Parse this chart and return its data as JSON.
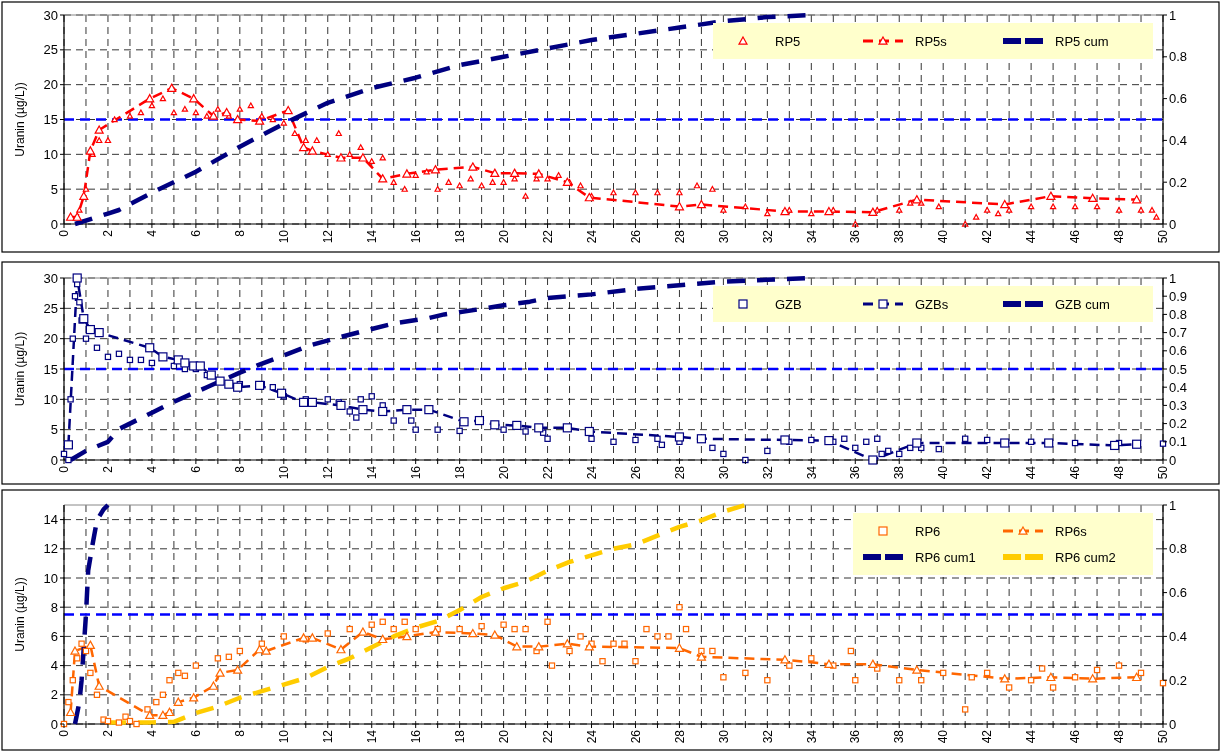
{
  "chart_data": [
    {
      "type": "scatter",
      "ylabel": "Uranin (µg/L))",
      "xlim": [
        0,
        50
      ],
      "ylim": [
        0,
        30
      ],
      "y2lim": [
        0,
        1
      ],
      "xticks": [
        0,
        {
          "value": 1,
          "label": null
        },
        2,
        {
          "value": 3,
          "label": null
        },
        4,
        {
          "value": 5,
          "label": null
        },
        6,
        {
          "value": 7,
          "label": null
        },
        8,
        {
          "value": 9,
          "label": null
        },
        10,
        {
          "value": 11,
          "label": null
        },
        12,
        {
          "value": 13,
          "label": null
        },
        14,
        {
          "value": 15,
          "label": null
        },
        16,
        {
          "value": 17,
          "label": null
        },
        18,
        {
          "value": 19,
          "label": null
        },
        20,
        {
          "value": 21,
          "label": null
        },
        22,
        {
          "value": 23,
          "label": null
        },
        24,
        {
          "value": 25,
          "label": null
        },
        26,
        {
          "value": 27,
          "label": null
        },
        28,
        {
          "value": 29,
          "label": null
        },
        30,
        {
          "value": 31,
          "label": null
        },
        32,
        {
          "value": 33,
          "label": null
        },
        34,
        {
          "value": 35,
          "label": null
        },
        36,
        {
          "value": 37,
          "label": null
        },
        38,
        {
          "value": 39,
          "label": null
        },
        40,
        {
          "value": 41,
          "label": null
        },
        42,
        {
          "value": 43,
          "label": null
        },
        44,
        {
          "value": 45,
          "label": null
        },
        46,
        {
          "value": 47,
          "label": null
        },
        48,
        {
          "value": 49,
          "label": null
        },
        50
      ],
      "yticks": [
        0,
        5,
        10,
        15,
        20,
        25,
        30
      ],
      "y2ticks": [
        0,
        0.2,
        0.4,
        0.6,
        0.8,
        1
      ],
      "grid": true,
      "legend": "top right",
      "ref_lines": [
        {
          "axis": "y",
          "value": 15,
          "color": "#0000ff",
          "line_style": "dashed"
        }
      ],
      "series": [
        {
          "name": "RP5",
          "type": "scatter",
          "color": "#ff0000",
          "marker": "triangle",
          "x": [
            0.7,
            1,
            1.3,
            1.6,
            2,
            2.3,
            3,
            3.5,
            4,
            4.5,
            5,
            5.5,
            6,
            6.5,
            7,
            7.5,
            8,
            8.5,
            9,
            9.5,
            10,
            10.5,
            11,
            11.5,
            12,
            12.5,
            13,
            13.5,
            14,
            14.5,
            15,
            15.5,
            16,
            16.5,
            17,
            17.5,
            18,
            18.5,
            19,
            19.5,
            20,
            20.5,
            21,
            21.5,
            22,
            22.5,
            23,
            23.5,
            24,
            25,
            26,
            27,
            28,
            28.8,
            29.5,
            30,
            31,
            32,
            33,
            34,
            35,
            36,
            37,
            38,
            38.5,
            39,
            39.8,
            41,
            41.5,
            42,
            42.5,
            43,
            44,
            45,
            46,
            47,
            48,
            49,
            49.5,
            49.7
          ],
          "values": [
            2,
            5,
            10,
            12,
            12,
            15,
            15.5,
            16,
            17,
            18,
            16,
            16.5,
            16,
            15.5,
            16.5,
            15.5,
            16.5,
            17,
            15.5,
            15,
            14.5,
            13,
            12,
            12,
            10,
            13,
            10,
            11,
            9,
            9.5,
            6,
            5,
            7,
            7.5,
            5,
            6,
            5.5,
            6.5,
            5.5,
            6,
            6,
            6.5,
            4,
            6.5,
            6.5,
            7,
            6,
            5.5,
            4,
            4.5,
            4.5,
            4.5,
            4.5,
            5.5,
            5,
            2,
            2.5,
            1.5,
            2,
            1.5,
            2,
            0,
            2,
            2,
            3,
            3,
            2.5,
            0,
            1,
            2,
            1.5,
            2,
            2.5,
            2.5,
            2.5,
            2.5,
            2,
            2,
            2,
            1
          ]
        },
        {
          "name": "RP5s",
          "type": "line",
          "color": "#ff0000",
          "marker": "triangle",
          "line_style": "dashed",
          "x": [
            0.3,
            0.6,
            0.9,
            1.2,
            1.6,
            3.9,
            4.9,
            5.9,
            6.8,
            7.4,
            7.9,
            8.9,
            10.2,
            10.9,
            11.3,
            12.6,
            13.6,
            14.5,
            15.6,
            16.9,
            18.6,
            19.6,
            20.5,
            21.6,
            22.9,
            23.9,
            28,
            29,
            32.8,
            34.8,
            36.8,
            38.8,
            42.8,
            44.9,
            46.8,
            48.8
          ],
          "values": [
            1,
            1,
            4,
            10.5,
            13.5,
            18,
            19.5,
            18,
            15.5,
            16,
            15,
            14.8,
            16.3,
            11,
            10.5,
            9.5,
            9.5,
            6.5,
            7.2,
            7.8,
            8.2,
            7.3,
            7.3,
            7.2,
            6,
            3.8,
            2.5,
            2.8,
            1.8,
            1.8,
            1.7,
            3.5,
            2.8,
            4,
            3.7,
            3.5
          ]
        },
        {
          "name": "RP5 cum",
          "type": "line",
          "axis": "y2",
          "color": "#000080",
          "line_style": "dashed",
          "x": [
            0.5,
            2,
            2.5,
            4,
            6,
            8,
            10,
            12,
            14,
            16,
            18,
            20,
            22,
            24,
            26,
            28,
            30,
            32,
            34
          ],
          "values": [
            0,
            0.05,
            0.067,
            0.15,
            0.25,
            0.37,
            0.48,
            0.58,
            0.65,
            0.7,
            0.76,
            0.8,
            0.84,
            0.88,
            0.91,
            0.94,
            0.97,
            0.99,
            1
          ]
        }
      ]
    },
    {
      "type": "scatter",
      "ylabel": "Uranin (µg/L))",
      "xlim": [
        0,
        50
      ],
      "ylim": [
        0,
        30
      ],
      "y2lim": [
        0,
        1
      ],
      "xticks": [
        0,
        {
          "value": 1,
          "label": null
        },
        2,
        {
          "value": 3,
          "label": null
        },
        4,
        {
          "value": 5,
          "label": null
        },
        6,
        {
          "value": 7,
          "label": null
        },
        8,
        {
          "value": 9,
          "label": null
        },
        10,
        {
          "value": 11,
          "label": null
        },
        12,
        {
          "value": 13,
          "label": null
        },
        14,
        {
          "value": 15,
          "label": null
        },
        16,
        {
          "value": 17,
          "label": null
        },
        18,
        {
          "value": 19,
          "label": null
        },
        20,
        {
          "value": 21,
          "label": null
        },
        22,
        {
          "value": 23,
          "label": null
        },
        24,
        {
          "value": 25,
          "label": null
        },
        26,
        {
          "value": 27,
          "label": null
        },
        28,
        {
          "value": 29,
          "label": null
        },
        30,
        {
          "value": 31,
          "label": null
        },
        32,
        {
          "value": 33,
          "label": null
        },
        34,
        {
          "value": 35,
          "label": null
        },
        36,
        {
          "value": 37,
          "label": null
        },
        38,
        {
          "value": 39,
          "label": null
        },
        40,
        {
          "value": 41,
          "label": null
        },
        42,
        {
          "value": 43,
          "label": null
        },
        44,
        {
          "value": 45,
          "label": null
        },
        46,
        {
          "value": 47,
          "label": null
        },
        48,
        {
          "value": 49,
          "label": null
        },
        50
      ],
      "yticks": [
        0,
        5,
        10,
        15,
        20,
        25,
        30
      ],
      "y2ticks": [
        0,
        0.1,
        0.2,
        0.3,
        0.4,
        0.5,
        0.6,
        0.7,
        0.8,
        0.9,
        1
      ],
      "grid": true,
      "legend": "top right",
      "ref_lines": [
        {
          "axis": "y",
          "value": 15,
          "color": "#0000ff",
          "line_style": "dashed"
        }
      ],
      "series": [
        {
          "name": "GZB",
          "type": "scatter",
          "color": "#000080",
          "marker": "square",
          "x": [
            0,
            0.2,
            0.3,
            0.4,
            0.5,
            0.6,
            0.7,
            0.8,
            1,
            1.5,
            2,
            2.5,
            3,
            3.5,
            4,
            5,
            5.5,
            6,
            6.5,
            8,
            9,
            9.5,
            10,
            11,
            12,
            12.5,
            13,
            13.3,
            13.5,
            14,
            14.5,
            15,
            15.8,
            16,
            17,
            18,
            20,
            21,
            21.8,
            22,
            24,
            25,
            26,
            27,
            27.2,
            28,
            29.5,
            30,
            31,
            32,
            33,
            34,
            35,
            35.5,
            36,
            36.5,
            37,
            37.2,
            37.5,
            38,
            38.5,
            39,
            39.8,
            41,
            42,
            44,
            46,
            48,
            50
          ],
          "values": [
            1,
            0,
            10,
            20,
            27,
            29,
            26,
            23,
            20,
            18.5,
            17,
            17.5,
            16.5,
            16.5,
            16,
            15.5,
            15,
            15,
            14,
            12.5,
            12.5,
            12,
            10.5,
            10,
            10,
            9.5,
            8,
            7,
            10,
            10.5,
            9,
            6.5,
            6.5,
            5,
            5,
            4.8,
            5,
            4.7,
            4.5,
            3.5,
            3.5,
            3,
            3.3,
            3.5,
            2.5,
            3,
            2,
            1,
            0,
            1.5,
            3,
            3.3,
            3,
            3.5,
            2,
            3,
            3.5,
            1,
            1.5,
            1,
            2,
            2,
            1.8,
            3.5,
            3.3,
            3,
            2.8,
            2.8,
            2.7
          ]
        },
        {
          "name": "GZBs",
          "type": "line",
          "color": "#000080",
          "marker": "square",
          "line_style": "dashed",
          "x": [
            0.2,
            0.6,
            0.9,
            1.2,
            1.6,
            3.9,
            4.5,
            5.2,
            5.5,
            5.9,
            6.2,
            6.7,
            7.1,
            7.5,
            7.9,
            8.9,
            9.9,
            10.9,
            11.3,
            12.6,
            13.6,
            14.5,
            15.6,
            16.6,
            18.2,
            18.9,
            19.6,
            20.6,
            21.6,
            22.9,
            23.9,
            28,
            29,
            32.8,
            34.8,
            36.8,
            38.8,
            42.8,
            44.8,
            47.8,
            48.8
          ],
          "values": [
            2.5,
            30,
            23.3,
            21.5,
            21,
            18.5,
            17,
            16.5,
            16,
            15.5,
            15.5,
            14,
            13,
            12.5,
            12,
            12.3,
            11,
            9.5,
            9.5,
            9,
            8.3,
            8,
            8.3,
            8.3,
            6.3,
            6.5,
            5.8,
            5.7,
            5.3,
            5.3,
            4.7,
            3.8,
            3.5,
            3.3,
            3.2,
            0,
            2.8,
            2.8,
            2.8,
            2.4,
            2.6
          ]
        },
        {
          "name": "GZB cum",
          "type": "line",
          "axis": "y2",
          "color": "#000080",
          "line_style": "dashed",
          "x": [
            0.3,
            1,
            2,
            2.5,
            4,
            5,
            6.5,
            8,
            8.8,
            9.9,
            11.2,
            12.4,
            14,
            15,
            16.6,
            17.3,
            19,
            20,
            21.2,
            22,
            24,
            26,
            28,
            30,
            32,
            34
          ],
          "values": [
            0,
            0.05,
            0.1,
            0.17,
            0.26,
            0.32,
            0.4,
            0.48,
            0.52,
            0.57,
            0.63,
            0.67,
            0.72,
            0.75,
            0.78,
            0.8,
            0.83,
            0.85,
            0.87,
            0.89,
            0.91,
            0.94,
            0.96,
            0.98,
            0.99,
            1
          ]
        }
      ]
    },
    {
      "type": "scatter",
      "ylabel": "Uranin (µg/L))",
      "xlim": [
        0,
        50
      ],
      "ylim": [
        0,
        15
      ],
      "y2lim": [
        0,
        1
      ],
      "xticks": [
        0,
        {
          "value": 1,
          "label": null
        },
        2,
        {
          "value": 3,
          "label": null
        },
        4,
        {
          "value": 5,
          "label": null
        },
        6,
        {
          "value": 7,
          "label": null
        },
        8,
        {
          "value": 9,
          "label": null
        },
        10,
        {
          "value": 11,
          "label": null
        },
        12,
        {
          "value": 13,
          "label": null
        },
        14,
        {
          "value": 15,
          "label": null
        },
        16,
        {
          "value": 17,
          "label": null
        },
        18,
        {
          "value": 19,
          "label": null
        },
        20,
        {
          "value": 21,
          "label": null
        },
        22,
        {
          "value": 23,
          "label": null
        },
        24,
        {
          "value": 25,
          "label": null
        },
        26,
        {
          "value": 27,
          "label": null
        },
        28,
        {
          "value": 29,
          "label": null
        },
        30,
        {
          "value": 31,
          "label": null
        },
        32,
        {
          "value": 33,
          "label": null
        },
        34,
        {
          "value": 35,
          "label": null
        },
        36,
        {
          "value": 37,
          "label": null
        },
        38,
        {
          "value": 39,
          "label": null
        },
        40,
        {
          "value": 41,
          "label": null
        },
        42,
        {
          "value": 43,
          "label": null
        },
        44,
        {
          "value": 45,
          "label": null
        },
        46,
        {
          "value": 47,
          "label": null
        },
        48,
        {
          "value": 49,
          "label": null
        },
        50
      ],
      "yticks": [
        0,
        2,
        4,
        6,
        8,
        10,
        12,
        14
      ],
      "y2ticks": [
        0,
        0.2,
        0.4,
        0.6,
        0.8,
        1
      ],
      "grid": true,
      "legend": "top right",
      "ref_lines": [
        {
          "axis": "y",
          "value": 7.5,
          "color": "#0000ff",
          "line_style": "dashed"
        }
      ],
      "series": [
        {
          "name": "RP6",
          "type": "scatter",
          "color": "#ff6600",
          "marker": "square",
          "x": [
            0,
            0.2,
            0.4,
            0.6,
            0.8,
            1,
            1.2,
            1.5,
            1.8,
            2,
            2.5,
            2.8,
            3,
            3.3,
            3.8,
            4.2,
            4.5,
            4.8,
            5.2,
            5.5,
            6,
            7,
            7.5,
            8,
            9,
            10,
            11,
            12,
            13,
            14,
            14.5,
            15,
            15.5,
            16,
            17,
            18,
            19,
            20,
            20.5,
            21,
            21.5,
            22,
            22.2,
            23,
            23.5,
            24,
            24.5,
            25,
            25.5,
            26,
            26.5,
            27,
            27.5,
            28,
            28.3,
            29,
            29.5,
            30,
            31,
            32,
            33,
            34,
            35,
            35.8,
            36,
            37,
            38,
            39,
            40,
            41,
            41.3,
            42,
            43,
            44,
            44.5,
            45,
            46,
            47,
            48,
            49,
            50
          ],
          "values": [
            0,
            1.5,
            3,
            4.5,
            5.5,
            5,
            3.5,
            2,
            0.3,
            0.2,
            0.1,
            0.5,
            0.2,
            0,
            1,
            1.5,
            2,
            3,
            3.5,
            3.3,
            4,
            4.5,
            4.6,
            5,
            5.5,
            6,
            5.8,
            6.2,
            6.5,
            6.8,
            7,
            6.5,
            7,
            6.5,
            6.5,
            6.5,
            6.7,
            6.8,
            6.5,
            6.5,
            5,
            7,
            4,
            5,
            6,
            5.5,
            4.3,
            5.5,
            5.5,
            4.3,
            6.5,
            6,
            6,
            8,
            6.5,
            5,
            5,
            3.2,
            3.5,
            3,
            4,
            4.5,
            4,
            5,
            3,
            3.8,
            3,
            3,
            3.5,
            1,
            3.2,
            3.5,
            2.5,
            3,
            3.8,
            2.5,
            3.2,
            3.7,
            4,
            3.5,
            2.8
          ]
        },
        {
          "name": "RP6s",
          "type": "line",
          "color": "#ff6600",
          "marker": "triangle",
          "line_style": "dashed",
          "x": [
            0.3,
            0.5,
            1.2,
            1.6,
            3.9,
            4.5,
            4.8,
            5.2,
            5.9,
            6.8,
            7.1,
            7.9,
            8.9,
            9.2,
            10.9,
            11.3,
            12.6,
            13.6,
            14.5,
            15.6,
            16.9,
            18.6,
            19.6,
            20.6,
            21.6,
            22.9,
            23.9,
            28,
            29,
            32.8,
            34.8,
            36.8,
            38.8,
            42.8,
            44.9,
            46.8,
            48.8
          ],
          "values": [
            0.8,
            5,
            5.4,
            2.6,
            0.6,
            0.6,
            0.8,
            1.5,
            1.8,
            2.6,
            3.5,
            3.7,
            5.1,
            5,
            5.9,
            5.9,
            5.1,
            6.3,
            5.8,
            6,
            6.3,
            6.2,
            6.1,
            5.3,
            5.3,
            5.5,
            5.3,
            5.2,
            4.6,
            4.4,
            4.1,
            4.1,
            3.7,
            3.1,
            3.2,
            3.1,
            3.2
          ]
        },
        {
          "name": "RP6 cum1",
          "type": "line",
          "axis": "y2",
          "color": "#000080",
          "line_style": "dashed",
          "x": [
            0.5,
            0.7,
            0.8,
            0.9,
            1,
            1.1,
            1.3,
            1.5,
            1.8,
            2
          ],
          "values": [
            0,
            0.1,
            0.2,
            0.35,
            0.5,
            0.7,
            0.82,
            0.93,
            0.98,
            1
          ]
        },
        {
          "name": "RP6 cum2",
          "type": "line",
          "axis": "y2",
          "color": "#ffcc00",
          "line_style": "dashed",
          "x": [
            2,
            3,
            4,
            5,
            6,
            7,
            8,
            9,
            10,
            11,
            12,
            13,
            14,
            15,
            16,
            17,
            18,
            19,
            20,
            21,
            22,
            23,
            24,
            25,
            26,
            27,
            28,
            29,
            30,
            31
          ],
          "values": [
            0.007,
            0.007,
            0.007,
            0.01,
            0.05,
            0.08,
            0.12,
            0.15,
            0.18,
            0.21,
            0.26,
            0.3,
            0.35,
            0.4,
            0.44,
            0.47,
            0.52,
            0.58,
            0.62,
            0.65,
            0.7,
            0.74,
            0.77,
            0.8,
            0.82,
            0.86,
            0.9,
            0.93,
            0.97,
            1
          ]
        }
      ]
    }
  ]
}
